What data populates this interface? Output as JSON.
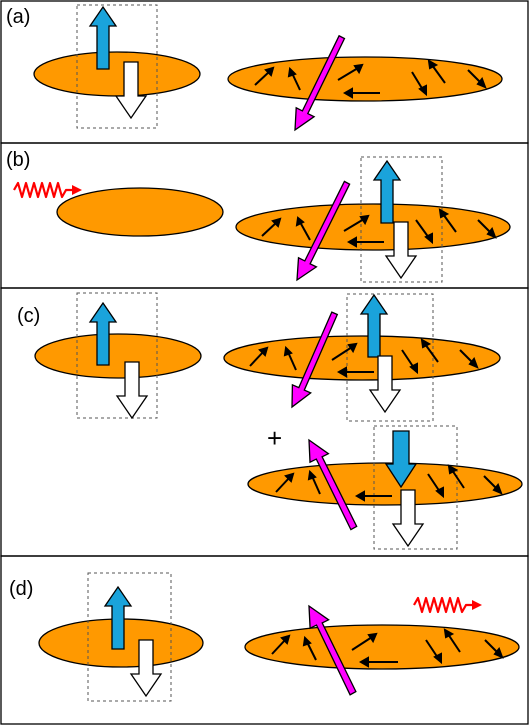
{
  "panels": [
    {
      "id": "a",
      "label": "(a)"
    },
    {
      "id": "b",
      "label": "(b)"
    },
    {
      "id": "c",
      "label": "(c)"
    },
    {
      "id": "d",
      "label": "(d)"
    }
  ],
  "plus_sign": "+",
  "colors": {
    "disk_fill": "#FF9900",
    "outline": "#000000",
    "spin_up": "#1AA3DB",
    "spin_down": "#FFFFFF",
    "total_moment": "#FF00FF",
    "photon": "#FF0000",
    "dashed_box": "#555555"
  },
  "icons": [
    "spin-up-arrow-icon",
    "spin-down-arrow-icon",
    "magnetization-arrow-icon",
    "photon-wave-icon"
  ]
}
